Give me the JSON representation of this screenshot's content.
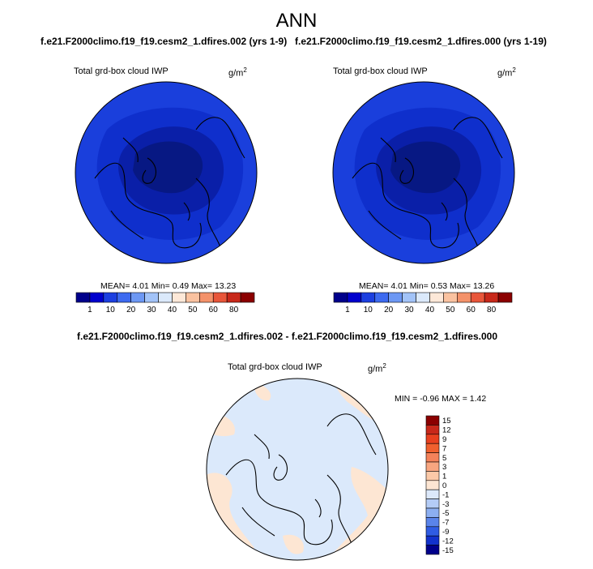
{
  "season": "ANN",
  "case_titles": {
    "left": "f.e21.F2000climo.f19_f19.cesm2_1.dfires.002 (yrs 1-9)",
    "right": "f.e21.F2000climo.f19_f19.cesm2_1.dfires.000 (yrs 1-19)",
    "diff": "f.e21.F2000climo.f19_f19.cesm2_1.dfires.002 - f.e21.F2000climo.f19_f19.cesm2_1.dfires.000"
  },
  "panels": {
    "left": {
      "label": "Total grd-box cloud IWP",
      "units_base": "g/m",
      "units_exp": "2",
      "stats": "MEAN=  4.01  Min=  0.49  Max= 13.23"
    },
    "right": {
      "label": "Total grd-box cloud IWP",
      "units_base": "g/m",
      "units_exp": "2",
      "stats": "MEAN=  4.01  Min=  0.53  Max= 13.26"
    },
    "diff": {
      "label": "Total grd-box cloud IWP",
      "units_base": "g/m",
      "units_exp": "2",
      "stats": "MIN =  -0.96 MAX =   1.42"
    }
  },
  "colorbar_horizontal": {
    "labels": [
      "1",
      "10",
      "20",
      "30",
      "40",
      "50",
      "60",
      "80"
    ],
    "colors": [
      "#00008b",
      "#0000cd",
      "#1c3fe0",
      "#3d6af0",
      "#6d98f4",
      "#a2c3f8",
      "#dbe9fb",
      "#fde8d8",
      "#fac2a0",
      "#f4926a",
      "#e8563a",
      "#c8281a",
      "#8b0000"
    ]
  },
  "colorbar_vertical": {
    "labels": [
      "15",
      "12",
      "9",
      "7",
      "5",
      "3",
      "1",
      "0",
      "-1",
      "-3",
      "-5",
      "-7",
      "-9",
      "-12",
      "-15"
    ],
    "colors": [
      "#8b0000",
      "#c8281a",
      "#e8401f",
      "#f0602e",
      "#f4825a",
      "#f8a680",
      "#fbc9a8",
      "#fde6d3",
      "#dce8fa",
      "#b4ccf6",
      "#8caff1",
      "#5a84ea",
      "#2f5ce3",
      "#1232cc",
      "#00008b"
    ]
  },
  "map_fields": {
    "left": {
      "outer": "#1a3fdc",
      "mid": "#0f2fcc",
      "inner": "#0a1fa8",
      "core": "#071883"
    },
    "right": {
      "outer": "#1a3fdc",
      "mid": "#0f2fcc",
      "inner": "#0a1fa8",
      "core": "#071883"
    },
    "diff": {
      "base": "#dbe9fb",
      "positive": "#fde6d3"
    }
  }
}
